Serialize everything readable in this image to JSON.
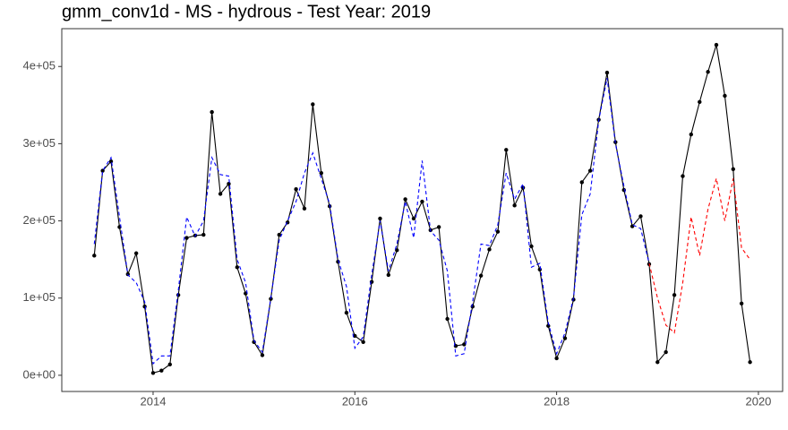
{
  "chart_data": {
    "type": "line",
    "title": "gmm_conv1d - MS - hydrous - Test Year: 2019",
    "x": [
      2013.417,
      2013.5,
      2013.583,
      2013.667,
      2013.75,
      2013.833,
      2013.917,
      2014.0,
      2014.083,
      2014.167,
      2014.25,
      2014.333,
      2014.417,
      2014.5,
      2014.583,
      2014.667,
      2014.75,
      2014.833,
      2014.917,
      2015.0,
      2015.083,
      2015.167,
      2015.25,
      2015.333,
      2015.417,
      2015.5,
      2015.583,
      2015.667,
      2015.75,
      2015.833,
      2015.917,
      2016.0,
      2016.083,
      2016.167,
      2016.25,
      2016.333,
      2016.417,
      2016.5,
      2016.583,
      2016.667,
      2016.75,
      2016.833,
      2016.917,
      2017.0,
      2017.083,
      2017.167,
      2017.25,
      2017.333,
      2017.417,
      2017.5,
      2017.583,
      2017.667,
      2017.75,
      2017.833,
      2017.917,
      2018.0,
      2018.083,
      2018.167,
      2018.25,
      2018.333,
      2018.417,
      2018.5,
      2018.583,
      2018.667,
      2018.75,
      2018.833,
      2018.917,
      2019.0,
      2019.083,
      2019.167,
      2019.25,
      2019.333,
      2019.417,
      2019.5,
      2019.583,
      2019.667,
      2019.75,
      2019.833,
      2019.917
    ],
    "series": [
      {
        "color": "#000000",
        "dash": false,
        "markers": true,
        "values": [
          155000,
          265000,
          277000,
          192000,
          131000,
          158000,
          89000,
          3000,
          6000,
          14000,
          104000,
          178000,
          181000,
          182000,
          341000,
          235000,
          248000,
          140000,
          106000,
          43000,
          26000,
          99000,
          182000,
          198000,
          241000,
          216000,
          351000,
          262000,
          219000,
          147000,
          81000,
          51000,
          43000,
          121000,
          203000,
          130000,
          162000,
          228000,
          203000,
          225000,
          188000,
          192000,
          73000,
          38000,
          40000,
          89000,
          129000,
          163000,
          186000,
          292000,
          220000,
          243000,
          167000,
          137000,
          64000,
          22000,
          48000,
          98000,
          250000,
          265000,
          331000,
          392000,
          302000,
          240000,
          193000,
          206000,
          144000,
          17000,
          30000,
          104000,
          258000,
          312000,
          354000,
          393000,
          428000,
          362000,
          267000,
          93000,
          17000
        ]
      },
      {
        "color": "#0000ff",
        "dash": true,
        "markers": false,
        "values": [
          170000,
          265000,
          282000,
          205000,
          130000,
          120000,
          95000,
          15000,
          25000,
          25000,
          110000,
          205000,
          180000,
          200000,
          282000,
          260000,
          258000,
          150000,
          120000,
          45000,
          30000,
          100000,
          175000,
          200000,
          225000,
          262000,
          288000,
          255000,
          222000,
          150000,
          115000,
          35000,
          50000,
          130000,
          200000,
          135000,
          170000,
          225000,
          178000,
          278000,
          187000,
          175000,
          135000,
          25000,
          28000,
          95000,
          170000,
          168000,
          195000,
          262000,
          228000,
          248000,
          140000,
          145000,
          68000,
          28000,
          55000,
          100000,
          208000,
          235000,
          330000,
          385000,
          300000,
          245000,
          195000,
          190000,
          145000,
          null,
          null,
          null,
          null,
          null,
          null,
          null,
          null,
          null,
          null,
          null,
          null
        ]
      },
      {
        "color": "#ff0000",
        "dash": true,
        "markers": false,
        "values": [
          null,
          null,
          null,
          null,
          null,
          null,
          null,
          null,
          null,
          null,
          null,
          null,
          null,
          null,
          null,
          null,
          null,
          null,
          null,
          null,
          null,
          null,
          null,
          null,
          null,
          null,
          null,
          null,
          null,
          null,
          null,
          null,
          null,
          null,
          null,
          null,
          null,
          null,
          null,
          null,
          null,
          null,
          null,
          null,
          null,
          null,
          null,
          null,
          null,
          null,
          null,
          null,
          null,
          null,
          null,
          null,
          null,
          null,
          null,
          null,
          null,
          null,
          null,
          null,
          null,
          null,
          145000,
          100000,
          65000,
          55000,
          120000,
          205000,
          155000,
          215000,
          255000,
          200000,
          255000,
          165000,
          150000
        ]
      }
    ],
    "xlim": [
      2013.095,
      2020.24
    ],
    "xticks": [
      2014,
      2016,
      2018,
      2020
    ],
    "ylim": [
      -21000,
      449000
    ],
    "yticks": [
      {
        "value": 0,
        "label": "0e+00"
      },
      {
        "value": 100000,
        "label": "1e+05"
      },
      {
        "value": 200000,
        "label": "2e+05"
      },
      {
        "value": 300000,
        "label": "3e+05"
      },
      {
        "value": 400000,
        "label": "4e+05"
      }
    ],
    "grid": false
  }
}
